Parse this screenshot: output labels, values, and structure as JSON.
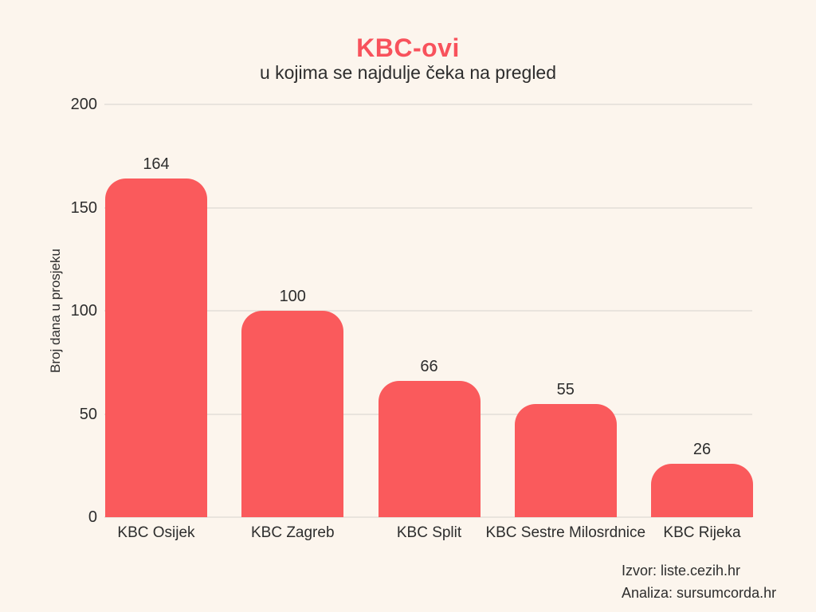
{
  "header": {
    "title": "KBC-ovi",
    "subtitle": "u kojima se najdulje čeka na pregled"
  },
  "chart_data": {
    "type": "bar",
    "title": "KBC-ovi",
    "subtitle": "u kojima se najdulje čeka na pregled",
    "categories": [
      "KBC Osijek",
      "KBC Zagreb",
      "KBC Split",
      "KBC Sestre Milosrdnice",
      "KBC Rijeka"
    ],
    "values": [
      164,
      100,
      66,
      55,
      26
    ],
    "xlabel": "",
    "ylabel": "Broj dana u prosjeku",
    "ylim": [
      0,
      200
    ],
    "yticks": [
      0,
      50,
      100,
      150,
      200
    ],
    "grid": true,
    "legend": "none",
    "value_labels": true
  },
  "footer": {
    "source": "Izvor: liste.cezih.hr",
    "analysis": "Analiza: sursumcorda.hr"
  },
  "theme": {
    "background": "#fcf5ed",
    "bar_color": "#fa5a5c",
    "title_color": "#f8525c",
    "text_color": "#2d2d2d",
    "gridline_color": "#e9e4dd"
  }
}
